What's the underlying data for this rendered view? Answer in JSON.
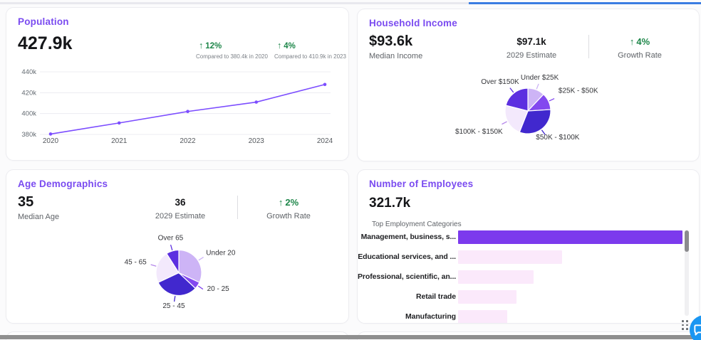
{
  "population": {
    "title": "Population",
    "value": "427.9k",
    "comparisons": [
      {
        "delta": "12%",
        "note": "Compared to 380.4k in 2020"
      },
      {
        "delta": "4%",
        "note": "Compared to 410.9k in 2023"
      }
    ]
  },
  "household_income": {
    "title": "Household Income",
    "median": {
      "value": "$93.6k",
      "label": "Median Income"
    },
    "estimate": {
      "value": "$97.1k",
      "label": "2029 Estimate"
    },
    "growth": {
      "delta": "4%",
      "label": "Growth Rate"
    }
  },
  "age_demographics": {
    "title": "Age Demographics",
    "median": {
      "value": "35",
      "label": "Median Age"
    },
    "estimate": {
      "value": "36",
      "label": "2029 Estimate"
    },
    "growth": {
      "delta": "2%",
      "label": "Growth Rate"
    }
  },
  "employees": {
    "title": "Number of Employees",
    "value": "321.7k",
    "subtitle": "Top Employment Categories"
  },
  "arrow_up": "↑",
  "colors": {
    "accent_purple": "#7a4bf0",
    "green": "#1d8649",
    "progress_blue": "#3b7de2",
    "chat_blue": "#1a96f2"
  },
  "chart_data": [
    {
      "id": "population_trend",
      "type": "line",
      "x": [
        2020,
        2021,
        2022,
        2023,
        2024
      ],
      "values": [
        380.4,
        391,
        402,
        411,
        427.9
      ],
      "unit": "k",
      "ylim": [
        380,
        445
      ],
      "yticks": [
        380,
        400,
        420,
        440
      ],
      "ytick_labels": [
        "380k",
        "400k",
        "420k",
        "440k"
      ],
      "grid": true,
      "line_color": "#7c4dff"
    },
    {
      "id": "household_income_distribution",
      "type": "pie",
      "labels": [
        "Under $25K",
        "$25K - $50K",
        "$50K - $100K",
        "$100K - $150K",
        "Over $150K"
      ],
      "values": [
        12,
        12,
        32,
        23,
        21
      ],
      "colors": [
        "#cdb4f6",
        "#8348ef",
        "#4128ce",
        "#f3e9fc",
        "#5c2fe0"
      ]
    },
    {
      "id": "age_distribution",
      "type": "pie",
      "labels": [
        "Under 20",
        "20 - 25",
        "25 - 45",
        "45 - 65",
        "Over 65"
      ],
      "values": [
        32,
        5,
        31,
        23,
        9
      ],
      "colors": [
        "#cdb4f6",
        "#8348ef",
        "#4128ce",
        "#f3e9fc",
        "#5c2fe0"
      ]
    },
    {
      "id": "employment_categories",
      "type": "bar",
      "orientation": "horizontal",
      "categories": [
        "Management, business, s...",
        "Educational services, and ...",
        "Professional, scientific, an...",
        "Retail trade",
        "Manufacturing"
      ],
      "values_pct_of_max": [
        100,
        46.3,
        33.7,
        26,
        22
      ],
      "bar_colors": [
        "#7c3aed",
        "#fbe9fb",
        "#fbe9fb",
        "#fbe9fb",
        "#fbe9fb"
      ]
    }
  ]
}
